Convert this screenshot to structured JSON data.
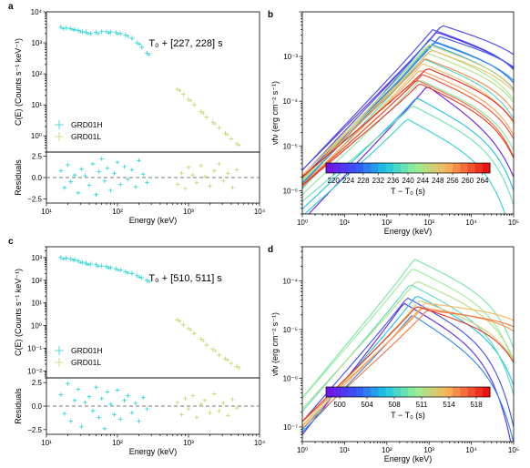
{
  "figure": {
    "panels": [
      "a",
      "b",
      "c",
      "d"
    ]
  },
  "colors": {
    "grd01h": "#22d3d3",
    "grd01l": "#c8d36b",
    "residual_zero": "#777777"
  },
  "chart_data": [
    {
      "id": "a",
      "type": "scatter",
      "label": "a",
      "annotation": "T₀ + [227, 228] s",
      "ylabel": "C(E) (Counts s⁻¹ keV⁻¹)",
      "ylabel_residual": "Residuals",
      "xlabel": "Energy (keV)",
      "xscale": "log",
      "yscale": "log",
      "xlim": [
        10,
        10000
      ],
      "ylim": [
        0.3,
        10000
      ],
      "ylim_residual": [
        -3,
        3
      ],
      "x_ticks": [
        "10¹",
        "10²",
        "10³",
        "10⁴"
      ],
      "y_ticks": [
        "10⁰",
        "10¹",
        "10²",
        "10³",
        "10⁴"
      ],
      "residual_ticks": [
        "2.5",
        "0.0",
        "−2.5"
      ],
      "legend": [
        "GRD01H",
        "GRD01L"
      ],
      "legend_position": "lower-left",
      "series": [
        {
          "name": "GRD01H",
          "color": "#22d3d3",
          "x": [
            16,
            19,
            22,
            25,
            28,
            32,
            36,
            42,
            50,
            60,
            70,
            80,
            95,
            110,
            130,
            160,
            190,
            220,
            260
          ],
          "y": [
            3200,
            3000,
            2900,
            2700,
            2500,
            2300,
            2200,
            2000,
            2200,
            2300,
            2300,
            2250,
            2150,
            2000,
            1800,
            1400,
            1000,
            720,
            460
          ]
        },
        {
          "name": "GRD01L",
          "color": "#c8d36b",
          "x": [
            700,
            850,
            1000,
            1200,
            1500,
            1800,
            2200,
            2700,
            3300,
            4000,
            4800
          ],
          "y": [
            32,
            22,
            15,
            10,
            6,
            4,
            2.7,
            1.8,
            1.2,
            0.8,
            0.55
          ]
        }
      ],
      "residuals": [
        {
          "name": "GRD01H",
          "x": [
            16,
            18,
            20,
            22,
            25,
            28,
            31,
            35,
            40,
            45,
            50,
            55,
            60,
            66,
            72,
            80,
            90,
            100,
            110,
            125,
            140,
            160,
            180,
            200,
            230,
            260
          ],
          "y": [
            0.8,
            -1.2,
            1.5,
            -0.5,
            0.3,
            -1.8,
            1.0,
            0.2,
            -0.9,
            1.6,
            -2.0,
            0.7,
            2.2,
            -0.4,
            1.1,
            -1.5,
            0.5,
            1.8,
            -0.8,
            1.3,
            -0.2,
            0.9,
            -1.1,
            2.0,
            0.4,
            -0.6
          ]
        },
        {
          "name": "GRD01L",
          "x": [
            700,
            800,
            900,
            1000,
            1150,
            1300,
            1500,
            1700,
            2000,
            2300,
            2700,
            3100,
            3600,
            4200,
            4800
          ],
          "y": [
            -0.8,
            0.5,
            -1.3,
            1.2,
            0.3,
            -0.6,
            1.4,
            0.1,
            -1.0,
            0.8,
            1.6,
            -0.4,
            0.5,
            -1.2,
            0.9
          ]
        }
      ]
    },
    {
      "id": "b",
      "type": "line",
      "label": "b",
      "ylabel": "νfν (erg cm⁻² s⁻¹)",
      "xlabel": "Energy (keV)",
      "xscale": "log",
      "yscale": "log",
      "xlim": [
        1,
        100000
      ],
      "ylim": [
        3e-07,
        0.01
      ],
      "x_ticks": [
        "10⁰",
        "10¹",
        "10²",
        "10³",
        "10⁴",
        "10⁵"
      ],
      "y_ticks": [
        "10⁻⁶",
        "10⁻⁵",
        "10⁻⁴",
        "10⁻³"
      ],
      "colorbar": {
        "label": "T − T₀ (s)",
        "range": [
          220,
          266
        ],
        "ticks": [
          "220",
          "224",
          "228",
          "232",
          "236",
          "240",
          "244",
          "248",
          "256",
          "260",
          "264"
        ],
        "colormap": "rainbow"
      },
      "curves": [
        {
          "t": 221,
          "peak_e": 900,
          "peak_f": 0.00022,
          "index": 1.0,
          "cutoff": 1.2
        },
        {
          "t": 223,
          "peak_e": 1500,
          "peak_f": 0.0035,
          "index": 0.95,
          "cutoff": 0.6
        },
        {
          "t": 225,
          "peak_e": 2000,
          "peak_f": 0.005,
          "index": 1.0,
          "cutoff": 0.55
        },
        {
          "t": 226,
          "peak_e": 1200,
          "peak_f": 0.004,
          "index": 1.0,
          "cutoff": 0.6
        },
        {
          "t": 228,
          "peak_e": 1800,
          "peak_f": 0.0028,
          "index": 0.95,
          "cutoff": 0.55
        },
        {
          "t": 230,
          "peak_e": 1000,
          "peak_f": 0.0024,
          "index": 1.05,
          "cutoff": 0.6
        },
        {
          "t": 232,
          "peak_e": 1300,
          "peak_f": 0.0021,
          "index": 1.0,
          "cutoff": 0.6
        },
        {
          "t": 234,
          "peak_e": 1100,
          "peak_f": 0.0019,
          "index": 1.0,
          "cutoff": 0.65
        },
        {
          "t": 236,
          "peak_e": 500,
          "peak_f": 0.00012,
          "index": 0.9,
          "cutoff": 0.9
        },
        {
          "t": 238,
          "peak_e": 300,
          "peak_f": 4e-05,
          "index": 0.85,
          "cutoff": 0.9
        },
        {
          "t": 240,
          "peak_e": 700,
          "peak_f": 0.0009,
          "index": 1.0,
          "cutoff": 0.7
        },
        {
          "t": 242,
          "peak_e": 400,
          "peak_f": 8e-05,
          "index": 0.8,
          "cutoff": 0.85
        },
        {
          "t": 244,
          "peak_e": 600,
          "peak_f": 0.0003,
          "index": 0.9,
          "cutoff": 0.75
        },
        {
          "t": 246,
          "peak_e": 800,
          "peak_f": 0.0016,
          "index": 1.0,
          "cutoff": 0.65
        },
        {
          "t": 248,
          "peak_e": 900,
          "peak_f": 0.0012,
          "index": 0.95,
          "cutoff": 0.65
        },
        {
          "t": 250,
          "peak_e": 1000,
          "peak_f": 0.0018,
          "index": 0.95,
          "cutoff": 0.6
        },
        {
          "t": 252,
          "peak_e": 700,
          "peak_f": 0.0007,
          "index": 0.95,
          "cutoff": 0.7
        },
        {
          "t": 254,
          "peak_e": 1100,
          "peak_f": 0.0014,
          "index": 0.9,
          "cutoff": 0.6
        },
        {
          "t": 256,
          "peak_e": 600,
          "peak_f": 0.0005,
          "index": 0.9,
          "cutoff": 0.7
        },
        {
          "t": 258,
          "peak_e": 800,
          "peak_f": 0.0009,
          "index": 0.9,
          "cutoff": 0.65
        },
        {
          "t": 260,
          "peak_e": 500,
          "peak_f": 0.0003,
          "index": 0.85,
          "cutoff": 0.75
        },
        {
          "t": 262,
          "peak_e": 700,
          "peak_f": 0.0004,
          "index": 0.85,
          "cutoff": 0.75
        },
        {
          "t": 264,
          "peak_e": 600,
          "peak_f": 0.00025,
          "index": 0.8,
          "cutoff": 0.8
        },
        {
          "t": 265,
          "peak_e": 900,
          "peak_f": 0.00055,
          "index": 0.8,
          "cutoff": 0.7
        }
      ]
    },
    {
      "id": "c",
      "type": "scatter",
      "label": "c",
      "annotation": "T₀ + [510, 511] s",
      "ylabel": "C(E) (Counts s⁻¹ keV⁻¹)",
      "ylabel_residual": "Residuals",
      "xlabel": "Energy (keV)",
      "xscale": "log",
      "yscale": "log",
      "xlim": [
        10,
        10000
      ],
      "ylim": [
        0.005,
        3000
      ],
      "ylim_residual": [
        -3,
        3
      ],
      "x_ticks": [
        "10¹",
        "10²",
        "10³",
        "10⁴"
      ],
      "y_ticks": [
        "10⁻²",
        "10⁻¹",
        "10⁰",
        "10¹",
        "10²",
        "10³"
      ],
      "residual_ticks": [
        "2.5",
        "0.0",
        "−2.5"
      ],
      "legend": [
        "GRD01H",
        "GRD01L"
      ],
      "legend_position": "lower-left",
      "series": [
        {
          "name": "GRD01H",
          "color": "#22d3d3",
          "x": [
            16,
            19,
            22,
            25,
            28,
            32,
            36,
            42,
            50,
            60,
            70,
            80,
            95,
            110,
            130,
            160,
            190,
            220,
            260
          ],
          "y": [
            1000,
            950,
            880,
            800,
            700,
            620,
            560,
            520,
            480,
            430,
            400,
            360,
            320,
            280,
            240,
            200,
            160,
            130,
            100
          ]
        },
        {
          "name": "GRD01L",
          "color": "#c8d36b",
          "x": [
            700,
            850,
            1000,
            1200,
            1500,
            1800,
            2200,
            2700,
            3300,
            4000,
            4800
          ],
          "y": [
            1.8,
            1.1,
            0.75,
            0.45,
            0.25,
            0.14,
            0.09,
            0.05,
            0.035,
            0.022,
            0.016
          ]
        }
      ],
      "residuals": [
        {
          "name": "GRD01H",
          "x": [
            16,
            18,
            20,
            22,
            25,
            28,
            31,
            35,
            40,
            45,
            50,
            55,
            60,
            66,
            72,
            80,
            90,
            100,
            110,
            125,
            140,
            160,
            180,
            200,
            230,
            260
          ],
          "y": [
            1.2,
            -0.8,
            2.4,
            -1.6,
            0.6,
            1.8,
            -2.2,
            0.4,
            1.0,
            -0.5,
            2.0,
            -1.2,
            0.8,
            -2.4,
            1.5,
            0.2,
            -0.9,
            1.7,
            -1.4,
            0.6,
            1.1,
            -0.7,
            0.3,
            -1.6,
            0.9,
            -0.3
          ]
        },
        {
          "name": "GRD01L",
          "x": [
            700,
            800,
            900,
            1000,
            1150,
            1300,
            1500,
            1700,
            2000,
            2300,
            2700,
            3100,
            3600,
            4200,
            4800
          ],
          "y": [
            0.4,
            -0.9,
            0.8,
            -0.3,
            1.1,
            -1.2,
            0.2,
            0.6,
            -0.7,
            1.3,
            -0.5,
            0.3,
            -1.0,
            0.7,
            -0.2
          ]
        }
      ]
    },
    {
      "id": "d",
      "type": "line",
      "label": "d",
      "ylabel": "νfν (erg cm⁻² s⁻¹)",
      "xlabel": "Energy (keV)",
      "xscale": "log",
      "yscale": "log",
      "xlim": [
        1,
        100000
      ],
      "ylim": [
        5e-08,
        0.0005
      ],
      "x_ticks": [
        "10⁰",
        "10¹",
        "10²",
        "10³",
        "10⁴",
        "10⁵"
      ],
      "y_ticks": [
        "10⁻⁷",
        "10⁻⁶",
        "10⁻⁵",
        "10⁻⁴"
      ],
      "colorbar": {
        "label": "T − T₀ (s)",
        "range": [
          500,
          520
        ],
        "ticks": [
          "500",
          "504",
          "508",
          "511",
          "514",
          "518"
        ],
        "colormap": "rainbow"
      },
      "curves": [
        {
          "t": 501,
          "peak_e": 250,
          "peak_f": 3.5e-05,
          "index": 1.1,
          "cutoff": 0.9
        },
        {
          "t": 503,
          "peak_e": 300,
          "peak_f": 4.5e-05,
          "index": 1.0,
          "cutoff": 0.85
        },
        {
          "t": 505,
          "peak_e": 400,
          "peak_f": 2e-05,
          "index": 0.9,
          "cutoff": 1.0
        },
        {
          "t": 507,
          "peak_e": 500,
          "peak_f": 5e-05,
          "index": 1.0,
          "cutoff": 0.8
        },
        {
          "t": 509,
          "peak_e": 350,
          "peak_f": 8.5e-05,
          "index": 1.0,
          "cutoff": 0.8
        },
        {
          "t": 510,
          "peak_e": 450,
          "peak_f": 0.00028,
          "index": 1.05,
          "cutoff": 0.75
        },
        {
          "t": 511,
          "peak_e": 400,
          "peak_f": 0.00018,
          "index": 1.0,
          "cutoff": 0.75
        },
        {
          "t": 512,
          "peak_e": 500,
          "peak_f": 0.0001,
          "index": 0.95,
          "cutoff": 0.7
        },
        {
          "t": 513,
          "peak_e": 600,
          "peak_f": 4e-05,
          "index": 0.9,
          "cutoff": 0.6
        },
        {
          "t": 515,
          "peak_e": 800,
          "peak_f": 3.5e-05,
          "index": 0.85,
          "cutoff": 0.2
        },
        {
          "t": 516,
          "peak_e": 700,
          "peak_f": 2.8e-05,
          "index": 0.8,
          "cutoff": 0.25
        },
        {
          "t": 517,
          "peak_e": 900,
          "peak_f": 2.5e-05,
          "index": 0.8,
          "cutoff": 0.2
        },
        {
          "t": 519,
          "peak_e": 500,
          "peak_f": 3e-05,
          "index": 0.85,
          "cutoff": 0.5
        }
      ]
    }
  ]
}
